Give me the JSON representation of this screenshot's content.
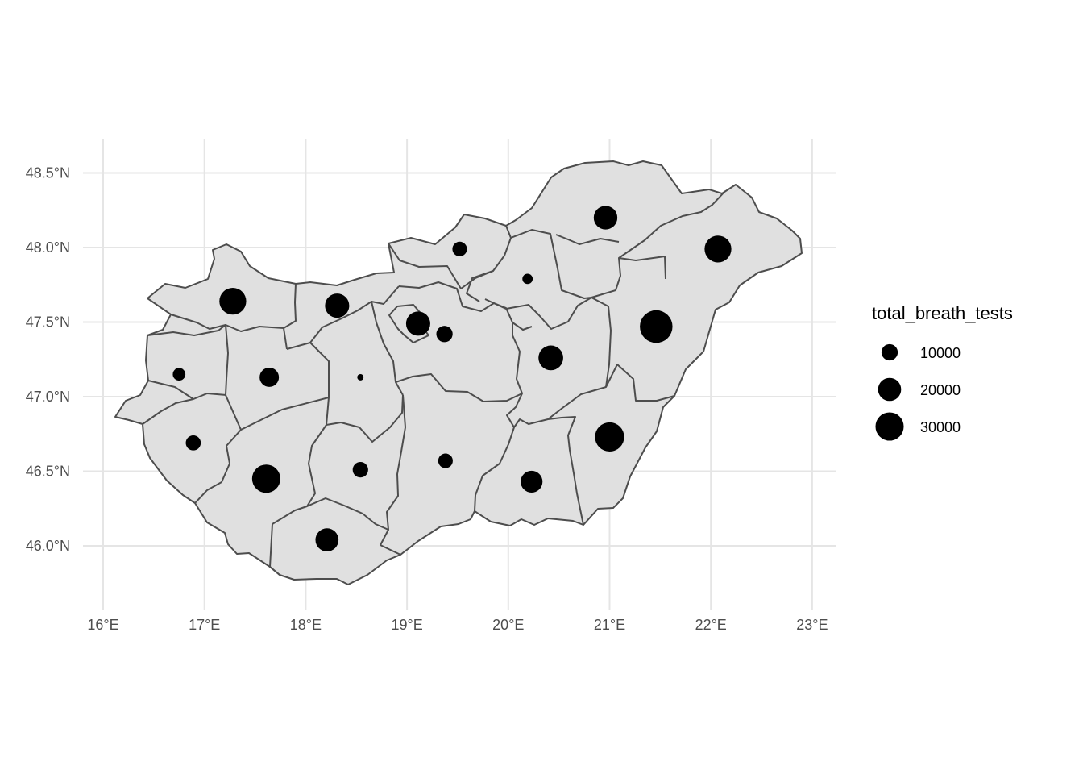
{
  "colors": {
    "background": "#ffffff",
    "grid": "#e5e5e5",
    "county_fill": "#e0e0e0",
    "county_border": "#4d4d4d",
    "point": "#000000",
    "axis_text": "#4d4d4d"
  },
  "chart_data": {
    "type": "scatter",
    "subtype": "bubble map of Hungarian counties",
    "x_axis": {
      "ticks": [
        16,
        17,
        18,
        19,
        20,
        21,
        22,
        23
      ],
      "tick_labels": [
        "16°E",
        "17°E",
        "18°E",
        "19°E",
        "20°E",
        "21°E",
        "22°E",
        "23°E"
      ],
      "range": [
        15.9,
        23.2
      ]
    },
    "y_axis": {
      "ticks": [
        46.0,
        46.5,
        47.0,
        47.5,
        48.0,
        48.5
      ],
      "tick_labels": [
        "46.0°N",
        "46.5°N",
        "47.0°N",
        "47.5°N",
        "48.0°N",
        "48.5°N"
      ],
      "range": [
        45.6,
        48.72
      ]
    },
    "grid": true,
    "size_variable": "total_breath_tests",
    "legend": {
      "title": "total_breath_tests",
      "position": "right",
      "entries": [
        {
          "label": "10000",
          "value": 10000
        },
        {
          "label": "20000",
          "value": 20000
        },
        {
          "label": "30000",
          "value": 30000
        }
      ]
    },
    "points": [
      {
        "lon": 17.28,
        "lat": 47.64,
        "value": 27000
      },
      {
        "lon": 18.31,
        "lat": 47.61,
        "value": 22000
      },
      {
        "lon": 16.75,
        "lat": 47.15,
        "value": 6000
      },
      {
        "lon": 17.64,
        "lat": 47.13,
        "value": 14000
      },
      {
        "lon": 18.54,
        "lat": 47.13,
        "value": 1500
      },
      {
        "lon": 16.89,
        "lat": 46.69,
        "value": 8500
      },
      {
        "lon": 17.61,
        "lat": 46.45,
        "value": 30000
      },
      {
        "lon": 18.54,
        "lat": 46.51,
        "value": 9000
      },
      {
        "lon": 18.21,
        "lat": 46.04,
        "value": 20000
      },
      {
        "lon": 19.11,
        "lat": 47.49,
        "value": 22000
      },
      {
        "lon": 19.37,
        "lat": 47.42,
        "value": 10000
      },
      {
        "lon": 19.52,
        "lat": 47.99,
        "value": 8000
      },
      {
        "lon": 20.19,
        "lat": 47.79,
        "value": 4000
      },
      {
        "lon": 20.96,
        "lat": 48.2,
        "value": 21000
      },
      {
        "lon": 22.07,
        "lat": 47.99,
        "value": 27000
      },
      {
        "lon": 21.46,
        "lat": 47.47,
        "value": 40000
      },
      {
        "lon": 20.42,
        "lat": 47.26,
        "value": 23000
      },
      {
        "lon": 19.38,
        "lat": 46.57,
        "value": 8000
      },
      {
        "lon": 20.23,
        "lat": 46.43,
        "value": 18000
      },
      {
        "lon": 21.0,
        "lat": 46.73,
        "value": 32000
      }
    ]
  }
}
